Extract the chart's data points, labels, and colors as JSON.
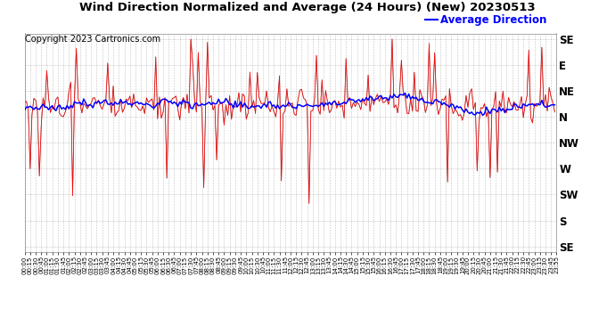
{
  "title": "Wind Direction Normalized and Average (24 Hours) (New) 20230513",
  "copyright": "Copyright 2023 Cartronics.com",
  "legend_label": "Average Direction",
  "legend_color": "#0000ff",
  "raw_color": "#ff0000",
  "avg_color": "#0000ff",
  "dark_line_color": "#222222",
  "bg_color": "#ffffff",
  "grid_color": "#999999",
  "ytick_labels_right": [
    "SE",
    "E",
    "NE",
    "N",
    "NW",
    "W",
    "SW",
    "S",
    "SE"
  ],
  "ytick_values": [
    0,
    45,
    90,
    135,
    180,
    225,
    270,
    315,
    360
  ],
  "ylim_min": -10,
  "ylim_max": 370,
  "title_fontsize": 9.5,
  "copyright_fontsize": 7,
  "legend_fontsize": 8.5,
  "n_points": 288,
  "seed": 12
}
